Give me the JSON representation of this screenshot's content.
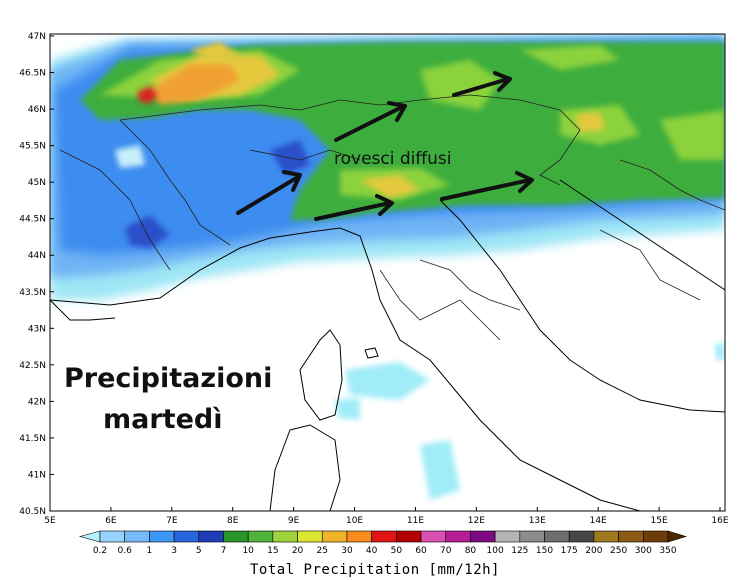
{
  "map": {
    "lat_labels": [
      "47N",
      "46.5N",
      "46N",
      "45.5N",
      "45N",
      "44.5N",
      "44N",
      "43.5N",
      "43N",
      "42.5N",
      "42N",
      "41.5N",
      "41N",
      "40.5N"
    ],
    "lon_labels": [
      "5E",
      "6E",
      "7E",
      "8E",
      "9E",
      "10E",
      "11E",
      "12E",
      "13E",
      "14E",
      "15E",
      "16E"
    ],
    "annotations": {
      "title_line1": "Precipitazioni",
      "title_line2": "martedì",
      "showers": "rovesci diffusi"
    }
  },
  "colorbar": {
    "labels": [
      "0.2",
      "0.6",
      "1",
      "3",
      "5",
      "7",
      "10",
      "15",
      "20",
      "25",
      "30",
      "40",
      "50",
      "60",
      "70",
      "80",
      "100",
      "125",
      "150",
      "175",
      "200",
      "250",
      "300",
      "350"
    ],
    "colors": [
      "#b4f0fa",
      "#96d2fa",
      "#78b9fa",
      "#3c96f5",
      "#2864dc",
      "#1e3cb4",
      "#289628",
      "#50b43c",
      "#a0d23c",
      "#dce632",
      "#f0b428",
      "#fa8c1e",
      "#e11414",
      "#b40000",
      "#dc50b4",
      "#b41e96",
      "#7d0a82",
      "#b4b4b4",
      "#8c8c8c",
      "#6e6e6e",
      "#464646",
      "#a0781e",
      "#8c5a14",
      "#6e3c0a",
      "#4b2800"
    ],
    "title": "Total Precipitation [mm/12h]"
  }
}
